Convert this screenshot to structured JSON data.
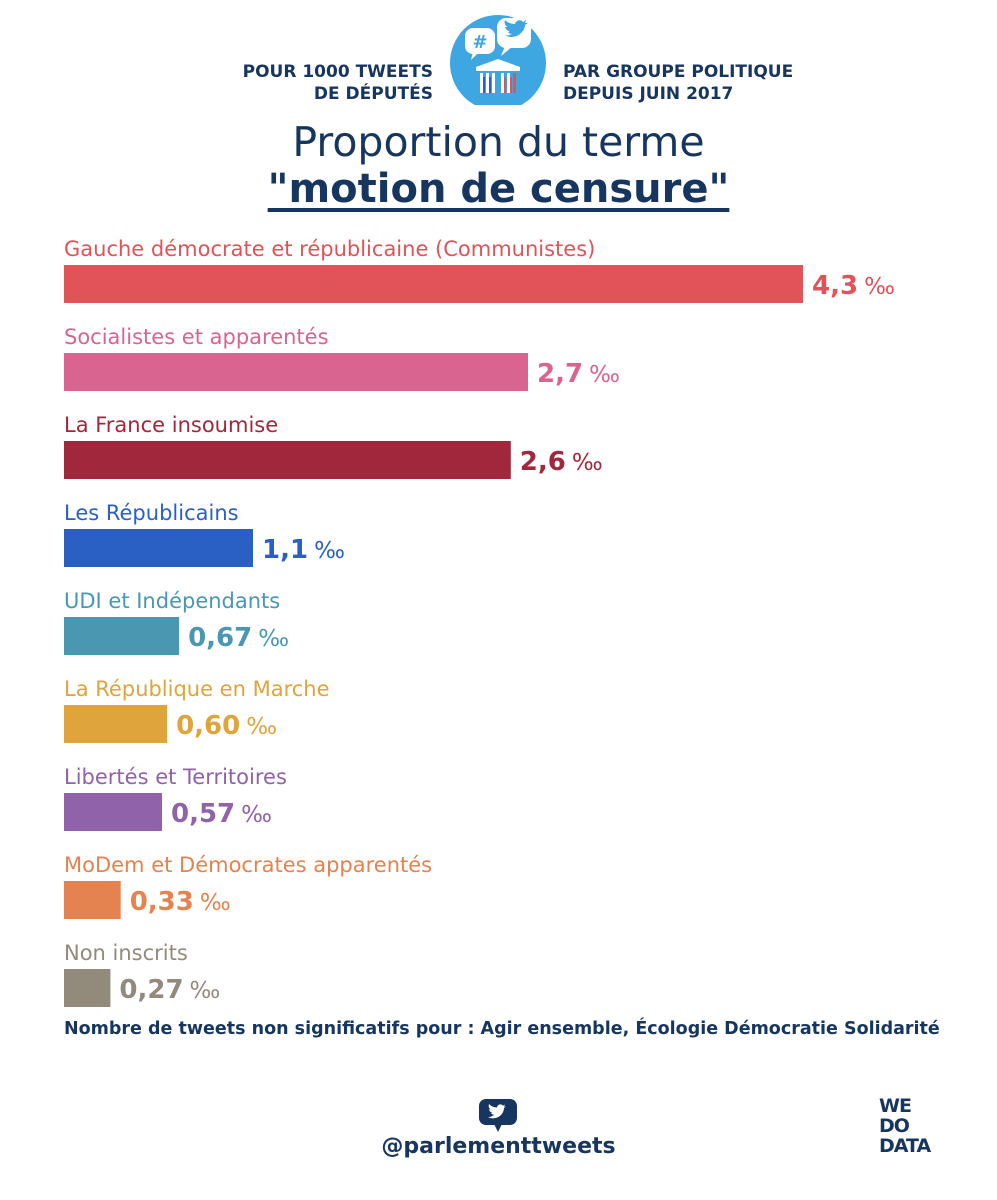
{
  "header": {
    "left_lines": [
      "POUR 1000 TWEETS",
      "DE DÉPUTÉS"
    ],
    "right_lines": [
      "PAR GROUPE POLITIQUE",
      "DEPUIS JUIN 2017"
    ]
  },
  "colors": {
    "text": "#16365f",
    "logo_blue": "#3ea6e0"
  },
  "chart_data": {
    "type": "bar",
    "orientation": "horizontal",
    "title": "Proportion du terme",
    "subtitle": "\"motion de censure\"",
    "unit": "‰",
    "xlim": [
      0,
      4.3
    ],
    "grid": false,
    "categories": [
      "Gauche démocrate et républicaine (Communistes)",
      "Socialistes et apparentés",
      "La France insoumise",
      "Les Républicains",
      "UDI et Indépendants",
      "La République en Marche",
      "Libertés et Territoires",
      "MoDem et Démocrates apparentés",
      "Non inscrits"
    ],
    "values": [
      4.3,
      2.7,
      2.6,
      1.1,
      0.67,
      0.6,
      0.57,
      0.33,
      0.27
    ],
    "value_labels": [
      "4,3",
      "2,7",
      "2,6",
      "1,1",
      "0,67",
      "0,60",
      "0,57",
      "0,33",
      "0,27"
    ],
    "colors": [
      "#e05358",
      "#d9648f",
      "#a1273c",
      "#2a60c4",
      "#4a97b1",
      "#dfa43c",
      "#8f62a9",
      "#e4834f",
      "#928a7b"
    ]
  },
  "note": "Nombre de tweets non significatifs pour : Agir ensemble, Écologie Démocratie Solidarité",
  "footer": {
    "handle": "@parlementtweets",
    "brand_lines": [
      "WE",
      "DO",
      "DATA"
    ]
  }
}
